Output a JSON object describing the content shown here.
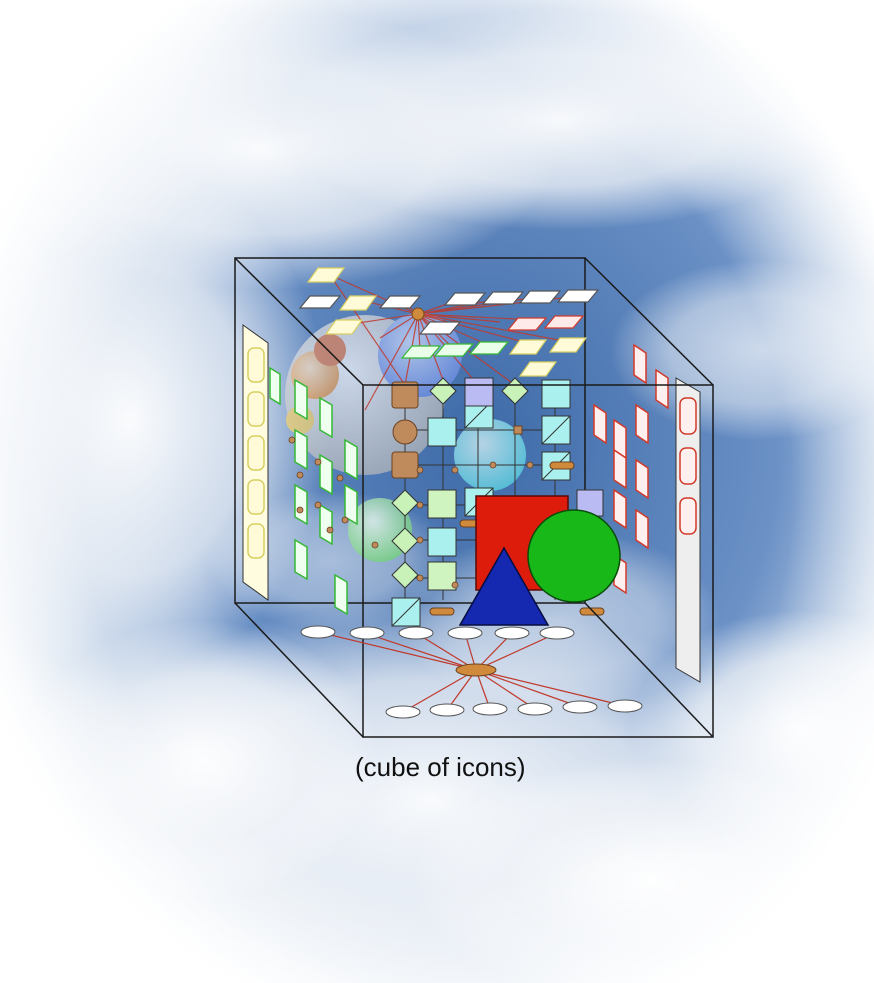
{
  "caption": "(cube of icons)",
  "colors": {
    "sky_blue": "#4d76b0",
    "cloud": "#f4f6f9",
    "cube_edge": "#1a1a1a",
    "red_square": "#dd1c0c",
    "green_circle": "#17b817",
    "blue_triangle": "#1428b0",
    "connector": "#c0392b",
    "hub": "#d08a3c",
    "yellow_outline": "#d8cf62",
    "green_outline": "#35b835",
    "red_outline": "#d23a2a",
    "cyan_box": "#aaf0ee",
    "brown_box": "#bf8a5c",
    "lavender_box": "#bbbbf4",
    "lime_diamond": "#c8f2b8"
  },
  "icons": [
    "cube-wireframe",
    "red-square",
    "green-circle",
    "blue-triangle"
  ]
}
